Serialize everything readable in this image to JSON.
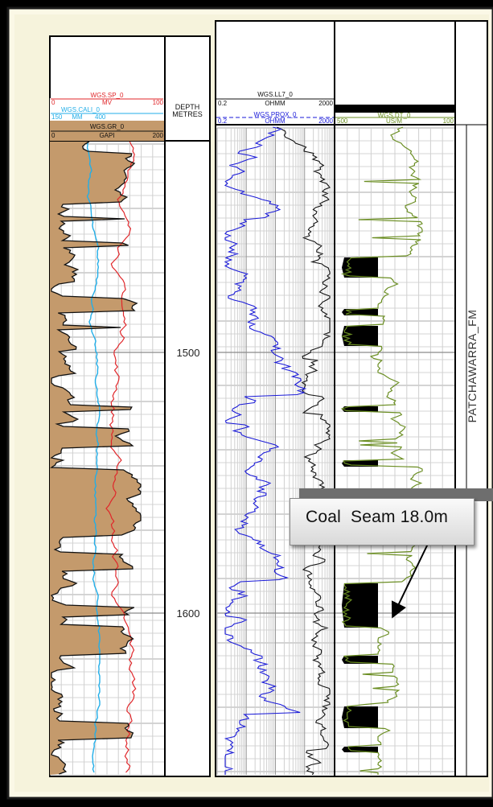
{
  "tracks": {
    "gr": {
      "sp": {
        "name": "WGS.SP_0",
        "unit": "MV",
        "min": "0",
        "max": "100",
        "color": "#e0262a"
      },
      "cali": {
        "name": "WGS.CALI_0",
        "unit": "MM",
        "min": "150",
        "max": "400",
        "color": "#22aee8"
      },
      "gr": {
        "name": "WGS.GR_0",
        "unit": "GAPI",
        "min": "0",
        "max": "200",
        "color": "#111111",
        "fill": "#c49a6c"
      }
    },
    "depth": {
      "title_line1": "DEPTH",
      "title_line2": "METRES",
      "labels": [
        "1500",
        "1600"
      ]
    },
    "resistivity": {
      "ll7": {
        "name": "WGS.LL7_0",
        "unit": "OHMM",
        "min": "0.2",
        "max": "2000",
        "color": "#111111"
      },
      "prox": {
        "name": "WGS.PROX_0",
        "unit": "OHMM",
        "min": "0.2",
        "max": "2000",
        "color": "#1a1ad8"
      }
    },
    "sonic": {
      "dt": {
        "name": "WGS.DT_0",
        "unit": "US/M",
        "min": "500",
        "max": "100",
        "color": "#6b8e23"
      }
    },
    "formation": {
      "name": "PATCHAWARRA_FM"
    }
  },
  "callout": {
    "text": "Coal  Seam 18.0m"
  }
}
